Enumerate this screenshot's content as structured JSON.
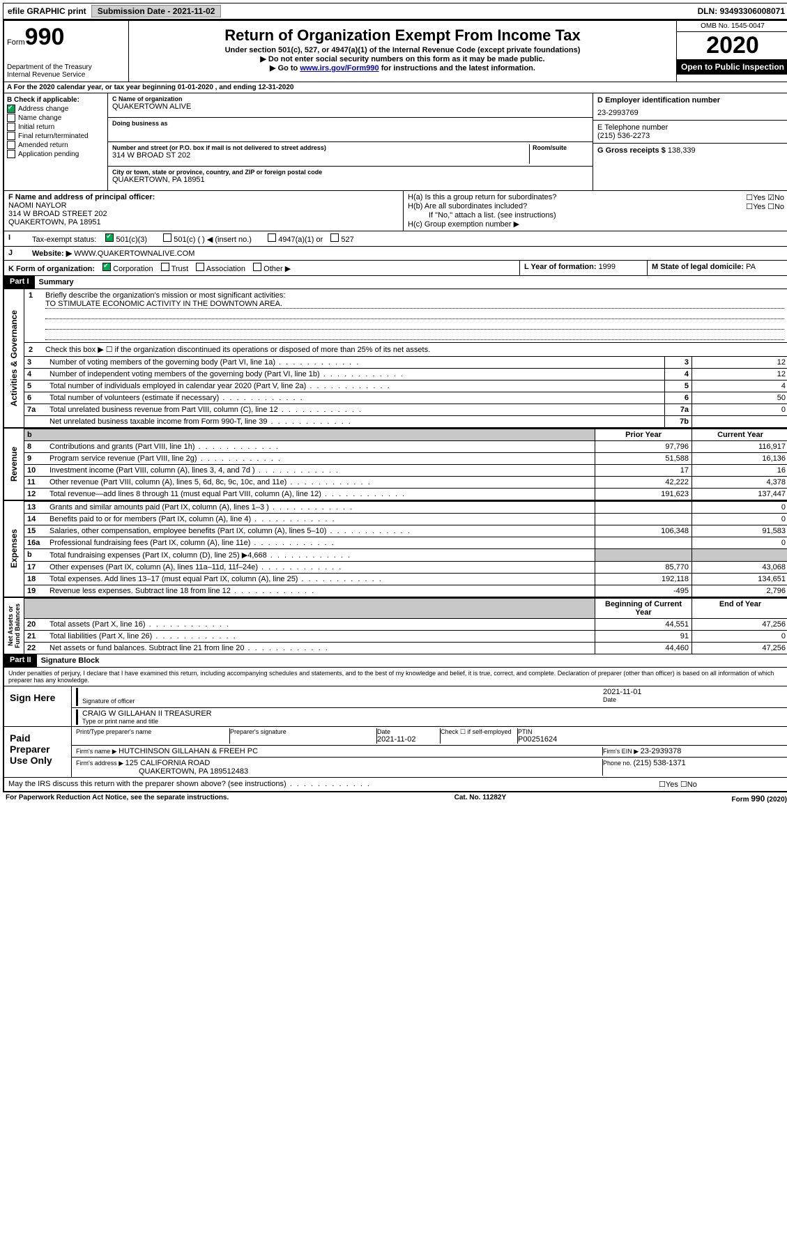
{
  "top": {
    "efile": "efile GRAPHIC print",
    "subdate_label": "Submission Date - ",
    "subdate": "2021-11-02",
    "dln_label": "DLN: ",
    "dln": "93493306008071"
  },
  "header": {
    "form_prefix": "Form",
    "form_no": "990",
    "dept": "Department of the Treasury\nInternal Revenue Service",
    "title": "Return of Organization Exempt From Income Tax",
    "sub1": "Under section 501(c), 527, or 4947(a)(1) of the Internal Revenue Code (except private foundations)",
    "sub2": "Do not enter social security numbers on this form as it may be made public.",
    "sub3a": "Go to ",
    "sub3_link": "www.irs.gov/Form990",
    "sub3b": " for instructions and the latest information.",
    "omb": "OMB No. 1545-0047",
    "year": "2020",
    "inspect": "Open to Public Inspection"
  },
  "rowA": "For the 2020 calendar year, or tax year beginning 01-01-2020    , and ending 12-31-2020",
  "colB": {
    "hdr": "B Check if applicable:",
    "items": [
      "Address change",
      "Name change",
      "Initial return",
      "Final return/terminated",
      "Amended return",
      "Application pending"
    ],
    "checked": [
      true,
      false,
      false,
      false,
      false,
      false
    ]
  },
  "colC": {
    "name_lbl": "C Name of organization",
    "name": "QUAKERTOWN ALIVE",
    "dba_lbl": "Doing business as",
    "addr_lbl": "Number and street (or P.O. box if mail is not delivered to street address)",
    "room_lbl": "Room/suite",
    "addr": "314 W BROAD ST 202",
    "city_lbl": "City or town, state or province, country, and ZIP or foreign postal code",
    "city": "QUAKERTOWN, PA  18951"
  },
  "colD": {
    "ein_lbl": "D Employer identification number",
    "ein": "23-2993769",
    "phone_lbl": "E Telephone number",
    "phone": "(215) 536-2273",
    "gross_lbl": "G Gross receipts $ ",
    "gross": "138,339"
  },
  "rowF": {
    "lbl": "F  Name and address of principal officer:",
    "name": "NAOMI NAYLOR",
    "addr1": "314 W BROAD STREET 202",
    "addr2": "QUAKERTOWN, PA  18951"
  },
  "rowH": {
    "a": "H(a)  Is this a group return for subordinates?",
    "b": "H(b)  Are all subordinates included?",
    "c": "If \"No,\" attach a list. (see instructions)",
    "d": "H(c)  Group exemption number ▶",
    "yes": "Yes",
    "no": "No"
  },
  "rowI": {
    "lbl": "Tax-exempt status:",
    "opts": [
      "501(c)(3)",
      "501(c) (  ) ◀ (insert no.)",
      "4947(a)(1) or",
      "527"
    ]
  },
  "rowJ": {
    "lbl": "Website: ▶",
    "val": "  WWW.QUAKERTOWNALIVE.COM"
  },
  "rowK": {
    "lbl": "K Form of organization:",
    "opts": [
      "Corporation",
      "Trust",
      "Association",
      "Other ▶"
    ]
  },
  "rowL": {
    "lbl": "L Year of formation: ",
    "val": "1999"
  },
  "rowM": {
    "lbl": "M State of legal domicile: ",
    "val": "PA"
  },
  "part1": {
    "hdr": "Part I",
    "title": "Summary",
    "q1": "Briefly describe the organization's mission or most significant activities:",
    "mission": "TO STIMULATE ECONOMIC ACTIVITY IN THE DOWNTOWN AREA.",
    "q2": "Check this box ▶ ☐  if the organization discontinued its operations or disposed of more than 25% of its net assets."
  },
  "gov_rows": [
    {
      "n": "3",
      "t": "Number of voting members of the governing body (Part VI, line 1a)",
      "r": "3",
      "v": "12"
    },
    {
      "n": "4",
      "t": "Number of independent voting members of the governing body (Part VI, line 1b)",
      "r": "4",
      "v": "12"
    },
    {
      "n": "5",
      "t": "Total number of individuals employed in calendar year 2020 (Part V, line 2a)",
      "r": "5",
      "v": "4"
    },
    {
      "n": "6",
      "t": "Total number of volunteers (estimate if necessary)",
      "r": "6",
      "v": "50"
    },
    {
      "n": "7a",
      "t": "Total unrelated business revenue from Part VIII, column (C), line 12",
      "r": "7a",
      "v": "0"
    },
    {
      "n": "",
      "t": "Net unrelated business taxable income from Form 990-T, line 39",
      "r": "7b",
      "v": ""
    }
  ],
  "rev_hdr": {
    "py": "Prior Year",
    "cy": "Current Year"
  },
  "rev_rows": [
    {
      "n": "8",
      "t": "Contributions and grants (Part VIII, line 1h)",
      "py": "97,796",
      "cy": "116,917"
    },
    {
      "n": "9",
      "t": "Program service revenue (Part VIII, line 2g)",
      "py": "51,588",
      "cy": "16,136"
    },
    {
      "n": "10",
      "t": "Investment income (Part VIII, column (A), lines 3, 4, and 7d )",
      "py": "17",
      "cy": "16"
    },
    {
      "n": "11",
      "t": "Other revenue (Part VIII, column (A), lines 5, 6d, 8c, 9c, 10c, and 11e)",
      "py": "42,222",
      "cy": "4,378"
    },
    {
      "n": "12",
      "t": "Total revenue—add lines 8 through 11 (must equal Part VIII, column (A), line 12)",
      "py": "191,623",
      "cy": "137,447"
    }
  ],
  "exp_rows": [
    {
      "n": "13",
      "t": "Grants and similar amounts paid (Part IX, column (A), lines 1–3 )",
      "py": "",
      "cy": "0"
    },
    {
      "n": "14",
      "t": "Benefits paid to or for members (Part IX, column (A), line 4)",
      "py": "",
      "cy": "0"
    },
    {
      "n": "15",
      "t": "Salaries, other compensation, employee benefits (Part IX, column (A), lines 5–10)",
      "py": "106,348",
      "cy": "91,583"
    },
    {
      "n": "16a",
      "t": "Professional fundraising fees (Part IX, column (A), line 11e)",
      "py": "",
      "cy": "0"
    },
    {
      "n": "b",
      "t": "Total fundraising expenses (Part IX, column (D), line 25) ▶4,668",
      "py": "GREY",
      "cy": "GREY"
    },
    {
      "n": "17",
      "t": "Other expenses (Part IX, column (A), lines 11a–11d, 11f–24e)",
      "py": "85,770",
      "cy": "43,068"
    },
    {
      "n": "18",
      "t": "Total expenses. Add lines 13–17 (must equal Part IX, column (A), line 25)",
      "py": "192,118",
      "cy": "134,651"
    },
    {
      "n": "19",
      "t": "Revenue less expenses. Subtract line 18 from line 12",
      "py": "-495",
      "cy": "2,796"
    }
  ],
  "na_hdr": {
    "py": "Beginning of Current Year",
    "cy": "End of Year"
  },
  "na_rows": [
    {
      "n": "20",
      "t": "Total assets (Part X, line 16)",
      "py": "44,551",
      "cy": "47,256"
    },
    {
      "n": "21",
      "t": "Total liabilities (Part X, line 26)",
      "py": "91",
      "cy": "0"
    },
    {
      "n": "22",
      "t": "Net assets or fund balances. Subtract line 21 from line 20",
      "py": "44,460",
      "cy": "47,256"
    }
  ],
  "part2": {
    "hdr": "Part II",
    "title": "Signature Block",
    "decl": "Under penalties of perjury, I declare that I have examined this return, including accompanying schedules and statements, and to the best of my knowledge and belief, it is true, correct, and complete. Declaration of preparer (other than officer) is based on all information of which preparer has any knowledge."
  },
  "sign": {
    "here": "Sign Here",
    "sig_lbl": "Signature of officer",
    "date_lbl": "Date",
    "date": "2021-11-01",
    "name": "CRAIG W GILLAHAN II  TREASURER",
    "name_lbl": "Type or print name and title"
  },
  "paid": {
    "hdr": "Paid Preparer Use Only",
    "h1": "Print/Type preparer's name",
    "h2": "Preparer's signature",
    "h3": "Date",
    "d3": "2021-11-02",
    "h4": "Check ☐ if self-employed",
    "h5": "PTIN",
    "ptin": "P00251624",
    "firm_lbl": "Firm's name   ▶ ",
    "firm": "HUTCHINSON GILLAHAN & FREEH PC",
    "ein_lbl": "Firm's EIN ▶ ",
    "ein": "23-2939378",
    "addr_lbl": "Firm's address ▶ ",
    "addr1": "125 CALIFORNIA ROAD",
    "addr2": "QUAKERTOWN, PA  189512483",
    "phone_lbl": "Phone no. ",
    "phone": "(215) 538-1371",
    "discuss": "May the IRS discuss this return with the preparer shown above? (see instructions)"
  },
  "footer": {
    "l": "For Paperwork Reduction Act Notice, see the separate instructions.",
    "c": "Cat. No. 11282Y",
    "r": "Form 990 (2020)"
  },
  "tabs": {
    "gov": "Activities & Governance",
    "rev": "Revenue",
    "exp": "Expenses",
    "na": "Net Assets or Fund Balances"
  }
}
